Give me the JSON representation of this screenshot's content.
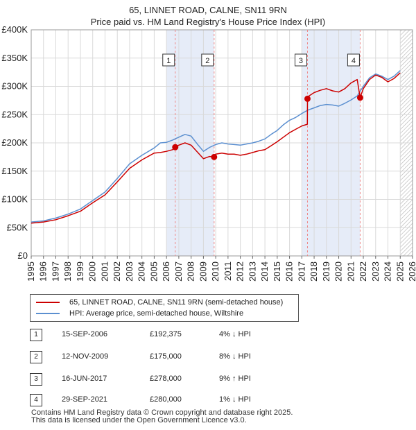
{
  "title_line1": "65, LINNET ROAD, CALNE, SN11 9RN",
  "title_line2": "Price paid vs. HM Land Registry's House Price Index (HPI)",
  "legend": {
    "property": "65, LINNET ROAD, CALNE, SN11 9RN (semi-detached house)",
    "hpi": "HPI: Average price, semi-detached house, Wiltshire"
  },
  "colors": {
    "property": "#cc0000",
    "hpi": "#5b8fd0",
    "shade": "#e6ecf8",
    "marker_line": "#ee8888",
    "grid": "#d9d9d9"
  },
  "transactions": [
    {
      "num": "1",
      "date": "15-SEP-2006",
      "price": "£192,375",
      "hpi": "4% ↓ HPI"
    },
    {
      "num": "2",
      "date": "12-NOV-2009",
      "price": "£175,000",
      "hpi": "8% ↓ HPI"
    },
    {
      "num": "3",
      "date": "16-JUN-2017",
      "price": "£278,000",
      "hpi": "9% ↑ HPI"
    },
    {
      "num": "4",
      "date": "29-SEP-2021",
      "price": "£280,000",
      "hpi": "1% ↓ HPI"
    }
  ],
  "footer_line1": "Contains HM Land Registry data © Crown copyright and database right 2025.",
  "footer_line2": "This data is licensed under the Open Government Licence v3.0.",
  "chart_data": {
    "type": "line",
    "title": "65, LINNET ROAD, CALNE, SN11 9RN — Price paid vs. HM Land Registry's House Price Index (HPI)",
    "xlabel": "",
    "ylabel": "",
    "xlim": [
      1995,
      2026
    ],
    "ylim": [
      0,
      400000
    ],
    "x_ticks": [
      "1995",
      "1996",
      "1997",
      "1998",
      "1999",
      "2000",
      "2001",
      "2002",
      "2003",
      "2004",
      "2005",
      "2006",
      "2007",
      "2008",
      "2009",
      "2010",
      "2011",
      "2012",
      "2013",
      "2014",
      "2015",
      "2016",
      "2017",
      "2018",
      "2019",
      "2020",
      "2021",
      "2022",
      "2023",
      "2024",
      "2025",
      "2026"
    ],
    "y_ticks": [
      {
        "value": 0,
        "label": "£0"
      },
      {
        "value": 50000,
        "label": "£50K"
      },
      {
        "value": 100000,
        "label": "£100K"
      },
      {
        "value": 150000,
        "label": "£150K"
      },
      {
        "value": 200000,
        "label": "£200K"
      },
      {
        "value": 250000,
        "label": "£250K"
      },
      {
        "value": 300000,
        "label": "£300K"
      },
      {
        "value": 350000,
        "label": "£350K"
      },
      {
        "value": 400000,
        "label": "£400K"
      }
    ],
    "shaded_ranges": [
      [
        2006.0,
        2009.87
      ],
      [
        2017.0,
        2021.74
      ]
    ],
    "hatched_from": 2025.0,
    "sales": [
      {
        "label": "1",
        "x": 2006.71,
        "y": 192375
      },
      {
        "label": "2",
        "x": 2009.87,
        "y": 175000
      },
      {
        "label": "3",
        "x": 2017.46,
        "y": 278000
      },
      {
        "label": "4",
        "x": 2021.74,
        "y": 280000
      }
    ],
    "series": [
      {
        "name": "HPI: Average price, semi-detached house, Wiltshire",
        "x": [
          1995,
          1996,
          1997,
          1998,
          1999,
          2000,
          2001,
          2002,
          2003,
          2004,
          2005,
          2005.5,
          2006,
          2006.5,
          2007,
          2007.5,
          2008,
          2008.5,
          2009,
          2009.5,
          2010,
          2010.5,
          2011,
          2011.5,
          2012,
          2012.5,
          2013,
          2013.5,
          2014,
          2014.5,
          2015,
          2015.5,
          2016,
          2016.5,
          2017,
          2017.5,
          2018,
          2018.5,
          2019,
          2019.5,
          2020,
          2020.5,
          2021,
          2021.5,
          2022,
          2022.5,
          2023,
          2023.5,
          2024,
          2024.5,
          2025
        ],
        "values": [
          60000,
          62000,
          67000,
          74000,
          83000,
          98000,
          113000,
          137000,
          163000,
          178000,
          191000,
          200000,
          201000,
          205000,
          210000,
          215000,
          212000,
          198000,
          185000,
          192000,
          197000,
          200000,
          198000,
          197000,
          196000,
          198000,
          200000,
          203000,
          207000,
          215000,
          222000,
          232000,
          240000,
          245000,
          252000,
          258000,
          262000,
          266000,
          268000,
          267000,
          265000,
          270000,
          276000,
          283000,
          300000,
          315000,
          322000,
          318000,
          312000,
          318000,
          328000
        ]
      },
      {
        "name": "65, LINNET ROAD, CALNE, SN11 9RN (semi-detached house)",
        "x": [
          1995,
          1996,
          1997,
          1998,
          1999,
          2000,
          2001,
          2002,
          2003,
          2004,
          2005,
          2005.5,
          2006,
          2006.5,
          2006.71,
          2007,
          2007.5,
          2008,
          2008.5,
          2009,
          2009.5,
          2009.87,
          2010,
          2010.5,
          2011,
          2011.5,
          2012,
          2012.5,
          2013,
          2013.5,
          2014,
          2014.5,
          2015,
          2015.5,
          2016,
          2016.5,
          2017,
          2017.45,
          2017.46,
          2017.5,
          2018,
          2018.5,
          2019,
          2019.5,
          2020,
          2020.5,
          2021,
          2021.5,
          2021.74,
          2022,
          2022.5,
          2023,
          2023.5,
          2024,
          2024.5,
          2025
        ],
        "values": [
          58000,
          60000,
          64000,
          71000,
          79000,
          94000,
          108000,
          131000,
          155000,
          170000,
          182000,
          183000,
          185000,
          188000,
          192375,
          196000,
          200000,
          196000,
          184000,
          172000,
          176000,
          175000,
          180000,
          182000,
          180000,
          180000,
          178000,
          180000,
          183000,
          186000,
          188000,
          195000,
          202000,
          210000,
          218000,
          224000,
          230000,
          233000,
          278000,
          282000,
          289000,
          293000,
          296000,
          292000,
          290000,
          296000,
          306000,
          312000,
          280000,
          296000,
          312000,
          320000,
          316000,
          308000,
          314000,
          324000
        ]
      }
    ]
  }
}
